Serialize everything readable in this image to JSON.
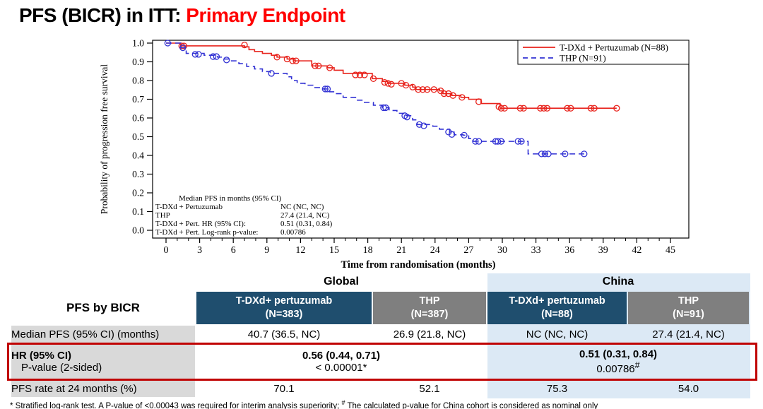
{
  "title": {
    "prefix": "PFS (BICR) in ITT: ",
    "highlight": "Primary Endpoint"
  },
  "colors": {
    "title_red": "#FF0000",
    "curve_red": "#E8231C",
    "curve_blue": "#3232D4",
    "navy": "#1F4E6E",
    "gray_header": "#7F7F7F",
    "light_blue": "#DCE9F5",
    "label_gray": "#D9D9D9",
    "highlight_border": "#C00000"
  },
  "chart_data": {
    "type": "line",
    "subtype": "kaplan-meier-step",
    "title": "",
    "xlabel": "Time from randomisation (months)",
    "ylabel": "Probability of progression free survival",
    "xlim": [
      0,
      45
    ],
    "ylim": [
      0.0,
      1.0
    ],
    "xticks": [
      0,
      3,
      6,
      9,
      12,
      15,
      18,
      21,
      24,
      27,
      30,
      33,
      36,
      39,
      42,
      45
    ],
    "x_minor_step": 1,
    "yticks": [
      0.0,
      0.1,
      0.2,
      0.3,
      0.4,
      0.5,
      0.6,
      0.7,
      0.8,
      0.9,
      1.0
    ],
    "grid": false,
    "frame": true,
    "legend": {
      "position": "top-right",
      "entries": [
        {
          "label": "T-DXd + Pertuzumab (N=88)",
          "color": "#E8231C",
          "style": "solid"
        },
        {
          "label": "THP (N=91)",
          "color": "#3232D4",
          "style": "dashed"
        }
      ]
    },
    "series": [
      {
        "name": "T-DXd + Pertuzumab",
        "color": "#E8231C",
        "style": "solid",
        "km_steps": [
          [
            0,
            1.0
          ],
          [
            1.3,
            0.985
          ],
          [
            7.0,
            0.98
          ],
          [
            7.4,
            0.965
          ],
          [
            7.9,
            0.955
          ],
          [
            8.6,
            0.945
          ],
          [
            9.4,
            0.935
          ],
          [
            9.9,
            0.925
          ],
          [
            10.8,
            0.915
          ],
          [
            11.4,
            0.905
          ],
          [
            13.0,
            0.878
          ],
          [
            14.4,
            0.868
          ],
          [
            15.0,
            0.855
          ],
          [
            15.8,
            0.838
          ],
          [
            18.4,
            0.81
          ],
          [
            19.3,
            0.795
          ],
          [
            19.8,
            0.785
          ],
          [
            21.3,
            0.775
          ],
          [
            22.0,
            0.765
          ],
          [
            22.3,
            0.752
          ],
          [
            24.4,
            0.745
          ],
          [
            24.7,
            0.73
          ],
          [
            25.5,
            0.72
          ],
          [
            26.3,
            0.71
          ],
          [
            27.0,
            0.7
          ],
          [
            28.1,
            0.677
          ],
          [
            29.8,
            0.652
          ],
          [
            40.2,
            0.652
          ]
        ],
        "censors": [
          [
            1.4,
            0.985
          ],
          [
            1.6,
            0.985
          ],
          [
            7.0,
            0.99
          ],
          [
            9.9,
            0.925
          ],
          [
            10.8,
            0.915
          ],
          [
            11.3,
            0.905
          ],
          [
            11.6,
            0.905
          ],
          [
            13.3,
            0.878
          ],
          [
            13.6,
            0.878
          ],
          [
            14.6,
            0.868
          ],
          [
            16.9,
            0.83
          ],
          [
            17.3,
            0.83
          ],
          [
            17.7,
            0.83
          ],
          [
            18.5,
            0.81
          ],
          [
            19.5,
            0.79
          ],
          [
            19.8,
            0.785
          ],
          [
            20.1,
            0.78
          ],
          [
            21.0,
            0.785
          ],
          [
            21.4,
            0.775
          ],
          [
            22.0,
            0.765
          ],
          [
            22.5,
            0.752
          ],
          [
            22.9,
            0.752
          ],
          [
            23.3,
            0.752
          ],
          [
            23.9,
            0.752
          ],
          [
            24.5,
            0.745
          ],
          [
            24.8,
            0.73
          ],
          [
            25.2,
            0.73
          ],
          [
            25.6,
            0.72
          ],
          [
            26.4,
            0.71
          ],
          [
            27.9,
            0.687
          ],
          [
            29.7,
            0.66
          ],
          [
            29.9,
            0.652
          ],
          [
            30.2,
            0.652
          ],
          [
            31.6,
            0.652
          ],
          [
            31.9,
            0.652
          ],
          [
            33.4,
            0.652
          ],
          [
            33.7,
            0.652
          ],
          [
            34.0,
            0.652
          ],
          [
            35.8,
            0.652
          ],
          [
            36.1,
            0.652
          ],
          [
            37.9,
            0.652
          ],
          [
            38.2,
            0.652
          ],
          [
            40.2,
            0.652
          ]
        ]
      },
      {
        "name": "THP",
        "color": "#3232D4",
        "style": "dashed",
        "km_steps": [
          [
            0,
            1.0
          ],
          [
            1.3,
            0.975
          ],
          [
            1.8,
            0.945
          ],
          [
            3.4,
            0.935
          ],
          [
            4.6,
            0.925
          ],
          [
            5.2,
            0.915
          ],
          [
            5.6,
            0.905
          ],
          [
            6.5,
            0.89
          ],
          [
            7.2,
            0.875
          ],
          [
            7.9,
            0.862
          ],
          [
            8.6,
            0.848
          ],
          [
            9.3,
            0.838
          ],
          [
            10.8,
            0.82
          ],
          [
            11.2,
            0.8
          ],
          [
            11.7,
            0.785
          ],
          [
            12.4,
            0.775
          ],
          [
            13.1,
            0.762
          ],
          [
            14.0,
            0.755
          ],
          [
            14.6,
            0.74
          ],
          [
            15.1,
            0.73
          ],
          [
            15.8,
            0.71
          ],
          [
            17.0,
            0.695
          ],
          [
            17.6,
            0.683
          ],
          [
            18.5,
            0.668
          ],
          [
            19.3,
            0.655
          ],
          [
            19.9,
            0.64
          ],
          [
            20.6,
            0.625
          ],
          [
            21.2,
            0.612
          ],
          [
            22.0,
            0.59
          ],
          [
            22.4,
            0.565
          ],
          [
            23.8,
            0.556
          ],
          [
            24.4,
            0.54
          ],
          [
            25.3,
            0.525
          ],
          [
            25.7,
            0.51
          ],
          [
            26.5,
            0.508
          ],
          [
            27.0,
            0.49
          ],
          [
            27.4,
            0.475
          ],
          [
            32.2,
            0.475
          ],
          [
            32.3,
            0.408
          ],
          [
            37.3,
            0.408
          ]
        ],
        "censors": [
          [
            0.15,
            1.0
          ],
          [
            1.5,
            0.975
          ],
          [
            2.6,
            0.94
          ],
          [
            2.9,
            0.94
          ],
          [
            4.2,
            0.928
          ],
          [
            4.5,
            0.928
          ],
          [
            5.4,
            0.91
          ],
          [
            9.4,
            0.838
          ],
          [
            14.2,
            0.755
          ],
          [
            14.4,
            0.755
          ],
          [
            19.4,
            0.655
          ],
          [
            19.6,
            0.655
          ],
          [
            21.3,
            0.612
          ],
          [
            21.5,
            0.605
          ],
          [
            22.6,
            0.565
          ],
          [
            23.0,
            0.558
          ],
          [
            25.2,
            0.525
          ],
          [
            25.5,
            0.512
          ],
          [
            26.6,
            0.508
          ],
          [
            27.6,
            0.475
          ],
          [
            27.9,
            0.475
          ],
          [
            29.4,
            0.475
          ],
          [
            29.6,
            0.475
          ],
          [
            29.9,
            0.475
          ],
          [
            31.4,
            0.475
          ],
          [
            31.7,
            0.475
          ],
          [
            33.5,
            0.408
          ],
          [
            33.8,
            0.408
          ],
          [
            34.1,
            0.408
          ],
          [
            35.6,
            0.408
          ],
          [
            37.3,
            0.408
          ]
        ]
      }
    ],
    "annotation": {
      "lines": [
        {
          "label": "Median PFS in months (95% CI)",
          "value": "",
          "indent": true
        },
        {
          "label": "T-DXd + Pertuzumab",
          "value": "NC  (NC, NC)"
        },
        {
          "label": "THP",
          "value": "27.4 (21.4, NC)"
        },
        {
          "label": "T-DXd + Pert. HR (95% CI):",
          "value": "0.51 (0.31, 0.84)"
        },
        {
          "label": "T-DXd + Pert. Log-rank p-value:",
          "value": "0.00786"
        }
      ]
    }
  },
  "table": {
    "corner_label": "PFS by BICR",
    "groups": [
      {
        "label": "Global"
      },
      {
        "label": "China"
      }
    ],
    "columns": [
      {
        "group": "Global",
        "title": "T-DXd+ pertuzumab",
        "n": "(N=383)"
      },
      {
        "group": "Global",
        "title": "THP",
        "n": "(N=387)"
      },
      {
        "group": "China",
        "title": "T-DXd+ pertuzumab",
        "n": "(N=88)"
      },
      {
        "group": "China",
        "title": "THP",
        "n": "(N=91)"
      }
    ],
    "rows": {
      "median": {
        "label": "Median PFS (95% CI) (months)",
        "values": [
          "40.7 (36.5, NC)",
          "26.9 (21.8, NC)",
          "NC (NC, NC)",
          "27.4 (21.4, NC)"
        ]
      },
      "hr": {
        "label_line1": "HR (95% CI)",
        "label_line2": "P-value (2-sided)",
        "global_hr": "0.56 (0.44, 0.71)",
        "global_p": "< 0.00001*",
        "china_hr": "0.51 (0.31, 0.84)",
        "china_p": "0.00786",
        "china_p_sup": "#"
      },
      "rate": {
        "label": "PFS rate at 24 months (%)",
        "values": [
          "70.1",
          "52.1",
          "75.3",
          "54.0"
        ]
      }
    }
  },
  "footnote": {
    "part1": "* Stratified log-rank test. A P-value of <0.00043 was required for interim analysis superiority; ",
    "sup": "#",
    "part2": " The calculated p-value for China cohort is considered as nominal only"
  }
}
